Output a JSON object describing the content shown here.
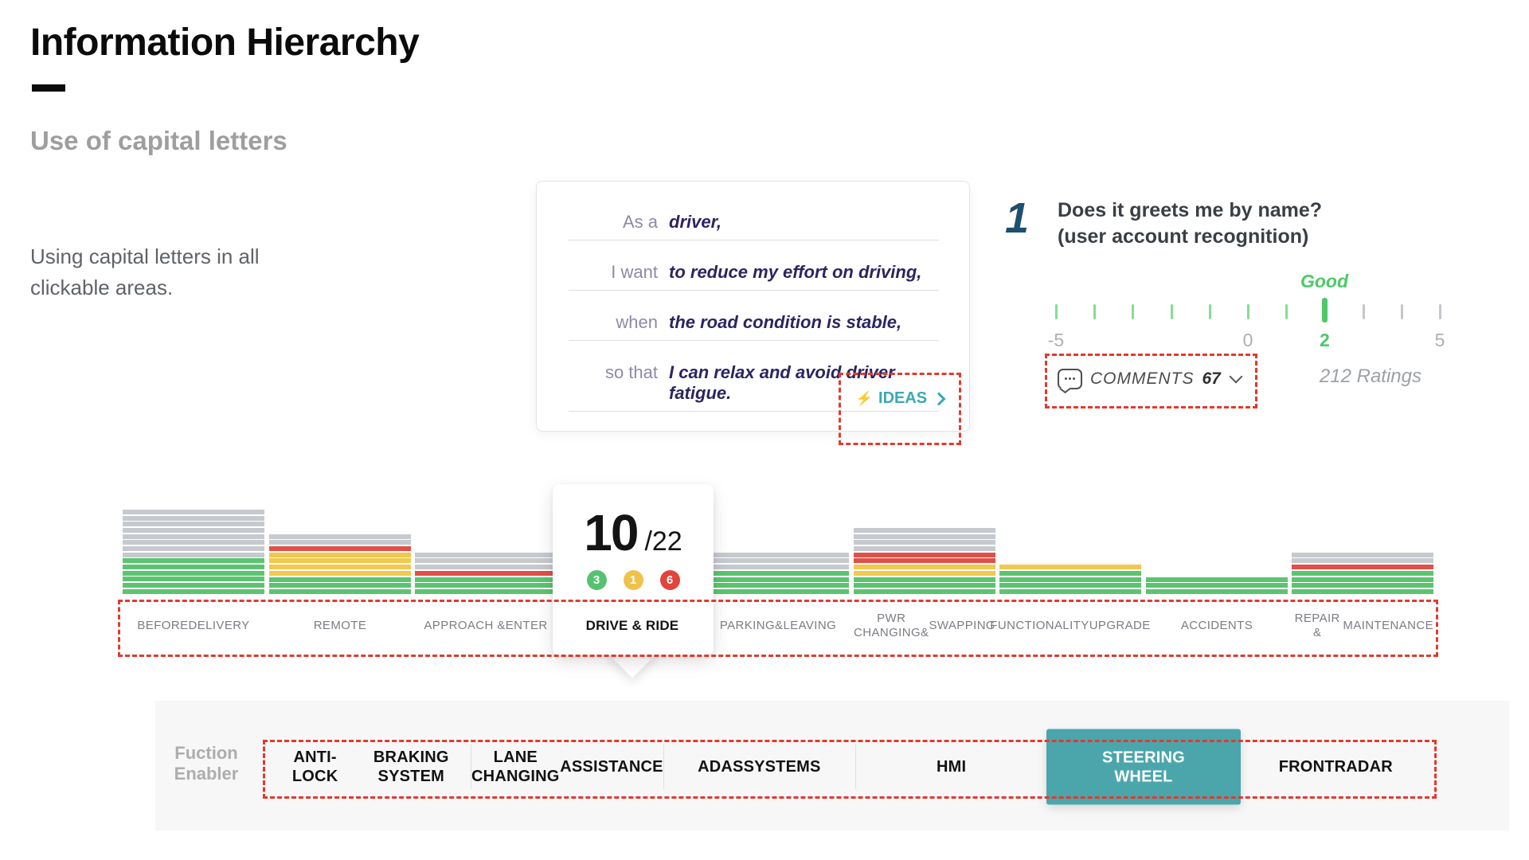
{
  "header": {
    "title": "Information Hierarchy",
    "subtitle": "Use of capital letters",
    "description": "Using capital letters in all clickable areas."
  },
  "story_card": {
    "rows": [
      {
        "label": "As a",
        "value": "driver,"
      },
      {
        "label": "I want",
        "value": "to reduce my effort on driving,"
      },
      {
        "label": "when",
        "value": "the road condition is stable,"
      },
      {
        "label": "so that",
        "value": "I can relax and avoid driver fatigue."
      }
    ],
    "ideas_label": "IDEAS"
  },
  "rating_panel": {
    "number": "1",
    "question_line1": "Does it greets me by name?",
    "question_line2": "(user account recognition)",
    "good_label": "Good",
    "selected_value": 2,
    "scale_min": -5,
    "scale_max": 5,
    "tick_labels": [
      {
        "value": -5,
        "label": "-5",
        "highlight": false
      },
      {
        "value": 0,
        "label": "0",
        "highlight": false
      },
      {
        "value": 2,
        "label": "2",
        "highlight": true
      },
      {
        "value": 5,
        "label": "5",
        "highlight": false
      }
    ],
    "comments_label": "COMMENTS",
    "comments_count": "67",
    "ratings_text": "212 Ratings"
  },
  "chart_data": {
    "type": "bar",
    "stacked": true,
    "note": "user journey phases; each stripe = one user story",
    "categories": [
      "BEFORE DELIVERY",
      "REMOTE",
      "APPROACH & ENTER",
      "DRIVE & RIDE",
      "PARKING& LEAVING",
      "PWR CHANGING& SWAPPING",
      "FUNCTIONALITY UPGRADE",
      "ACCIDENTS",
      "REPAIR & MAINTENANCE"
    ],
    "category_lines": [
      [
        "BEFORE",
        "DELIVERY"
      ],
      [
        "REMOTE"
      ],
      [
        "APPROACH &",
        "ENTER"
      ],
      [
        "DRIVE & RIDE"
      ],
      [
        "PARKING&",
        "LEAVING"
      ],
      [
        "PWR CHANGING&",
        "SWAPPING"
      ],
      [
        "FUNCTIONALITY",
        "UPGRADE"
      ],
      [
        "ACCIDENTS"
      ],
      [
        "REPAIR &",
        "MAINTENANCE"
      ]
    ],
    "series": [
      {
        "name": "gray",
        "color": "#C6CACF",
        "values": [
          8,
          2,
          3,
          3,
          3,
          4,
          0,
          0,
          2
        ]
      },
      {
        "name": "red",
        "color": "#E05048",
        "values": [
          0,
          1,
          1,
          1,
          0,
          2,
          0,
          0,
          1
        ]
      },
      {
        "name": "yellow",
        "color": "#F2C84D",
        "values": [
          0,
          4,
          0,
          0,
          0,
          2,
          1,
          0,
          0
        ]
      },
      {
        "name": "green",
        "color": "#5CC470",
        "values": [
          6,
          3,
          3,
          3,
          4,
          3,
          4,
          3,
          4
        ]
      }
    ],
    "selected_category": "DRIVE & RIDE",
    "legend": false
  },
  "score_card": {
    "score": "10",
    "total": "/22",
    "badges": [
      {
        "value": "3",
        "color": "#56C271"
      },
      {
        "value": "1",
        "color": "#F0C24B"
      },
      {
        "value": "6",
        "color": "#E2433B"
      }
    ]
  },
  "function_enabler": {
    "label_line1": "Fuction",
    "label_line2": "Enabler",
    "items": [
      {
        "lines": [
          "ANTI-LOCK",
          "BRAKING SYSTEM"
        ],
        "selected": false
      },
      {
        "lines": [
          "LANE CHANGING",
          "ASSISTANCE"
        ],
        "selected": false
      },
      {
        "lines": [
          "ADAS",
          "SYSTEMS"
        ],
        "selected": false
      },
      {
        "lines": [
          "HMI"
        ],
        "selected": false
      },
      {
        "lines": [
          "STEERING",
          "WHEEL"
        ],
        "selected": true
      },
      {
        "lines": [
          "FRONT",
          "RADAR"
        ],
        "selected": false
      }
    ]
  },
  "colors": {
    "annotation_red": "#E23A2E",
    "selected_teal": "#4BA6AB",
    "accent_teal_text": "#3AA8B8",
    "good_green": "#4FC869"
  }
}
